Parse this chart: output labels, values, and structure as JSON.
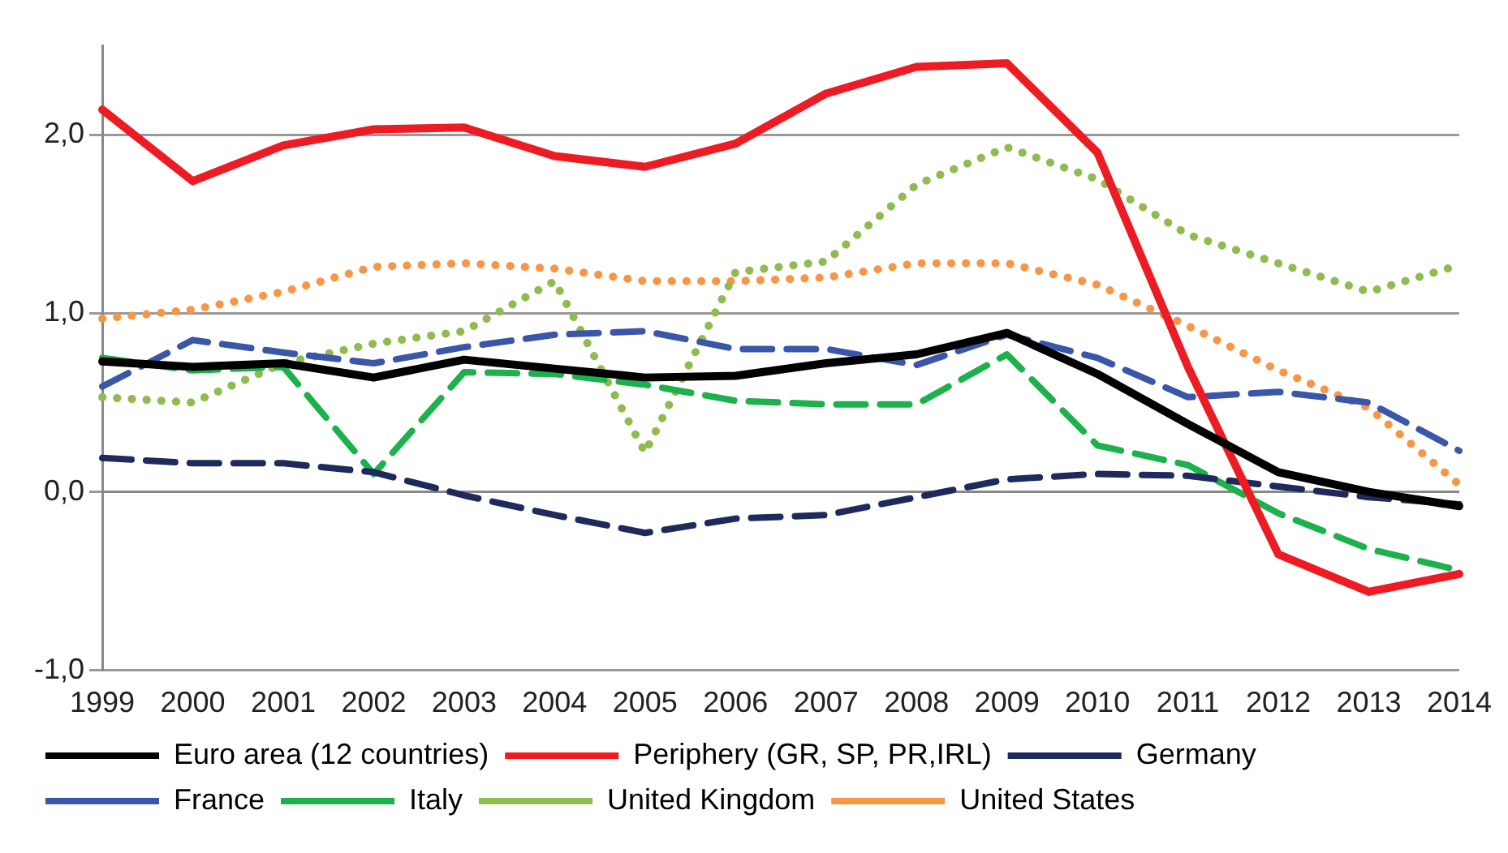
{
  "chart_data": {
    "type": "line",
    "categories": [
      "1999",
      "2000",
      "2001",
      "2002",
      "2003",
      "2004",
      "2005",
      "2006",
      "2007",
      "2008",
      "2009",
      "2010",
      "2011",
      "2012",
      "2013",
      "2014"
    ],
    "series": [
      {
        "name": "Euro area (12 countries)",
        "color": "#000000",
        "line_style": "solid",
        "values": [
          0.73,
          0.7,
          0.72,
          0.64,
          0.74,
          0.69,
          0.64,
          0.65,
          0.72,
          0.77,
          0.89,
          0.66,
          0.38,
          0.11,
          0.0,
          -0.08
        ]
      },
      {
        "name": "Periphery (GR, SP, PR,IRL)",
        "color": "#ed1c24",
        "line_style": "solid",
        "values": [
          2.14,
          1.74,
          1.94,
          2.03,
          2.04,
          1.88,
          1.82,
          1.95,
          2.23,
          2.38,
          2.4,
          1.9,
          0.7,
          -0.35,
          -0.56,
          -0.46
        ]
      },
      {
        "name": "Germany",
        "color": "#1f2a5c",
        "line_style": "dashed",
        "values": [
          0.19,
          0.16,
          0.16,
          0.11,
          -0.02,
          -0.13,
          -0.23,
          -0.15,
          -0.13,
          -0.03,
          0.07,
          0.1,
          0.09,
          0.03,
          -0.03,
          -0.07
        ]
      },
      {
        "name": "France",
        "color": "#3a56a8",
        "line_style": "dashed",
        "values": [
          0.59,
          0.85,
          0.78,
          0.72,
          0.81,
          0.88,
          0.9,
          0.8,
          0.8,
          0.71,
          0.88,
          0.75,
          0.53,
          0.56,
          0.5,
          0.23
        ]
      },
      {
        "name": "Italy",
        "color": "#1db14b",
        "line_style": "dashed",
        "values": [
          0.75,
          0.68,
          0.7,
          0.1,
          0.67,
          0.66,
          0.6,
          0.51,
          0.49,
          0.49,
          0.77,
          0.26,
          0.15,
          -0.12,
          -0.32,
          -0.44
        ]
      },
      {
        "name": "United Kingdom",
        "color": "#8fbb4f",
        "line_style": "dotted",
        "values": [
          0.53,
          0.5,
          0.72,
          0.83,
          0.9,
          1.18,
          0.22,
          1.23,
          1.29,
          1.72,
          1.93,
          1.75,
          1.44,
          1.28,
          1.12,
          1.27
        ]
      },
      {
        "name": "United States",
        "color": "#f79646",
        "line_style": "dotted",
        "values": [
          0.97,
          1.02,
          1.12,
          1.26,
          1.28,
          1.25,
          1.18,
          1.18,
          1.2,
          1.28,
          1.28,
          1.16,
          0.93,
          0.68,
          0.47,
          0.04
        ]
      }
    ],
    "ylim": [
      -1,
      2.5
    ],
    "yticks": [
      {
        "value": -1,
        "label": "-1,0"
      },
      {
        "value": 0,
        "label": "0,0"
      },
      {
        "value": 1,
        "label": "1,0"
      },
      {
        "value": 2,
        "label": "2,0"
      }
    ],
    "grid": "y",
    "legend": "bottom"
  }
}
